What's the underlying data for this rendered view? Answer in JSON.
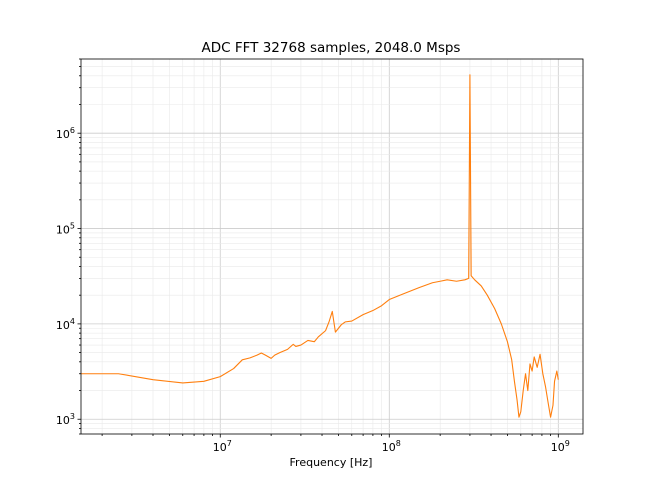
{
  "chart_data": {
    "type": "line",
    "title": "ADC FFT 32768 samples, 2048.0 Msps",
    "xlabel": "Frequency [Hz]",
    "ylabel": "",
    "xscale": "log",
    "yscale": "log",
    "xlim": [
      1500000.0,
      1400000000.0
    ],
    "ylim": [
      700,
      6000000.0
    ],
    "grid": "major and minor",
    "x_ticks": [
      {
        "value": 10000000.0,
        "base": "10",
        "exp": "7"
      },
      {
        "value": 100000000.0,
        "base": "10",
        "exp": "8"
      },
      {
        "value": 1000000000.0,
        "base": "10",
        "exp": "9"
      }
    ],
    "y_ticks": [
      {
        "value": 1000.0,
        "base": "10",
        "exp": "3"
      },
      {
        "value": 10000.0,
        "base": "10",
        "exp": "4"
      },
      {
        "value": 100000.0,
        "base": "10",
        "exp": "5"
      },
      {
        "value": 1000000.0,
        "base": "10",
        "exp": "6"
      }
    ],
    "series": [
      {
        "color": "#ff7f0e",
        "points": [
          [
            1500000.0,
            3000
          ],
          [
            2500000.0,
            3000
          ],
          [
            4000000.0,
            2600
          ],
          [
            6000000.0,
            2400
          ],
          [
            8000000.0,
            2500
          ],
          [
            10000000.0,
            2800
          ],
          [
            12000000.0,
            3400
          ],
          [
            13500000.0,
            4200
          ],
          [
            15000000.0,
            4400
          ],
          [
            16500000.0,
            4700
          ],
          [
            17500000.0,
            4950
          ],
          [
            18500000.0,
            4700
          ],
          [
            20000000.0,
            4350
          ],
          [
            21000000.0,
            4700
          ],
          [
            22500000.0,
            5000
          ],
          [
            25000000.0,
            5400
          ],
          [
            27000000.0,
            6100
          ],
          [
            28000000.0,
            5800
          ],
          [
            30000000.0,
            6000
          ],
          [
            33000000.0,
            6700
          ],
          [
            36000000.0,
            6500
          ],
          [
            38000000.0,
            7300
          ],
          [
            42000000.0,
            8500
          ],
          [
            44000000.0,
            10500
          ],
          [
            46000000.0,
            13500
          ],
          [
            48000000.0,
            8200
          ],
          [
            52000000.0,
            9800
          ],
          [
            55000000.0,
            10500
          ],
          [
            60000000.0,
            10700
          ],
          [
            70000000.0,
            12500
          ],
          [
            80000000.0,
            13800
          ],
          [
            90000000.0,
            15500
          ],
          [
            100000000.0,
            18000
          ],
          [
            120000000.0,
            20500
          ],
          [
            150000000.0,
            24000
          ],
          [
            180000000.0,
            27000
          ],
          [
            200000000.0,
            28000
          ],
          [
            220000000.0,
            29000
          ],
          [
            250000000.0,
            28000
          ],
          [
            280000000.0,
            29000
          ],
          [
            295000000.0,
            30000
          ],
          [
            300000000.0,
            4100000.0
          ],
          [
            305000000.0,
            32000
          ],
          [
            320000000.0,
            29000
          ],
          [
            350000000.0,
            25000
          ],
          [
            380000000.0,
            20000
          ],
          [
            420000000.0,
            14500
          ],
          [
            460000000.0,
            10000
          ],
          [
            500000000.0,
            6500
          ],
          [
            530000000.0,
            4200
          ],
          [
            550000000.0,
            2500
          ],
          [
            570000000.0,
            1600
          ],
          [
            585000000.0,
            1050
          ],
          [
            600000000.0,
            1200
          ],
          [
            620000000.0,
            2000
          ],
          [
            640000000.0,
            3000
          ],
          [
            660000000.0,
            2000
          ],
          [
            680000000.0,
            3800
          ],
          [
            700000000.0,
            3200
          ],
          [
            720000000.0,
            4500
          ],
          [
            750000000.0,
            3500
          ],
          [
            780000000.0,
            4800
          ],
          [
            810000000.0,
            3000
          ],
          [
            840000000.0,
            2200
          ],
          [
            870000000.0,
            1500
          ],
          [
            900000000.0,
            1050
          ],
          [
            930000000.0,
            1400
          ],
          [
            950000000.0,
            2500
          ],
          [
            980000000.0,
            3200
          ],
          [
            1000000000.0,
            2600
          ]
        ]
      }
    ]
  }
}
